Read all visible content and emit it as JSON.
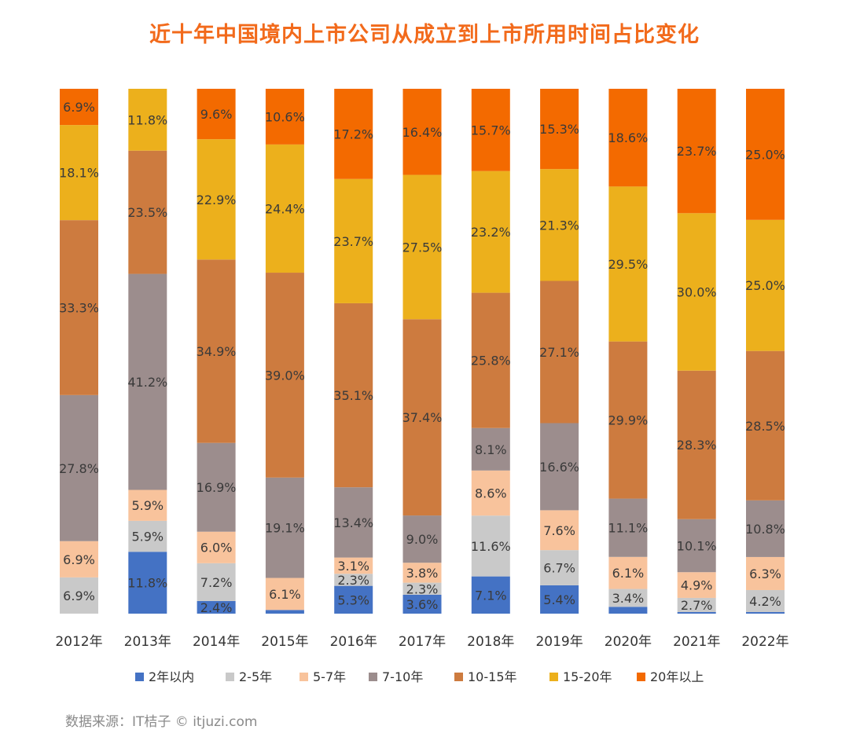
{
  "title": "近十年中国境内上市公司从成立到上市所用时间占比变化",
  "source": "数据来源：IT桔子 © itjuzi.com",
  "chart_data": {
    "type": "bar",
    "stacked": true,
    "normalized": true,
    "title": "近十年中国境内上市公司从成立到上市所用时间占比变化",
    "categories": [
      "2012年",
      "2013年",
      "2014年",
      "2015年",
      "2016年",
      "2017年",
      "2018年",
      "2019年",
      "2020年",
      "2021年",
      "2022年"
    ],
    "ylim": [
      0,
      100
    ],
    "grid": false,
    "legend_position": "bottom",
    "series": [
      {
        "name": "2年以内",
        "color": "#4472c4",
        "values": [
          0.0,
          11.8,
          2.4,
          0.7,
          5.3,
          3.6,
          7.1,
          5.4,
          1.3,
          0.3,
          0.3
        ],
        "labels": [
          "",
          "11.8%",
          "2.4%",
          "",
          "5.3%",
          "3.6%",
          "7.1%",
          "5.4%",
          "",
          "",
          ""
        ]
      },
      {
        "name": "2-5年",
        "color": "#c9c9c9",
        "values": [
          6.9,
          5.9,
          7.2,
          0.0,
          2.3,
          2.3,
          11.6,
          6.7,
          3.4,
          2.7,
          4.2
        ],
        "labels": [
          "6.9%",
          "5.9%",
          "7.2%",
          "",
          "2.3%",
          "2.3%",
          "11.6%",
          "6.7%",
          "3.4%",
          "2.7%",
          "4.2%"
        ]
      },
      {
        "name": "5-7年",
        "color": "#f8c39c",
        "values": [
          6.9,
          5.9,
          6.0,
          6.1,
          3.1,
          3.8,
          8.6,
          7.6,
          6.1,
          4.9,
          6.3
        ],
        "labels": [
          "6.9%",
          "5.9%",
          "6.0%",
          "6.1%",
          "3.1%",
          "3.8%",
          "8.6%",
          "7.6%",
          "6.1%",
          "4.9%",
          "6.3%"
        ]
      },
      {
        "name": "7-10年",
        "color": "#9c8d8d",
        "values": [
          27.8,
          41.2,
          16.9,
          19.1,
          13.4,
          9.0,
          8.1,
          16.6,
          11.1,
          10.1,
          10.8
        ],
        "labels": [
          "27.8%",
          "41.2%",
          "16.9%",
          "19.1%",
          "13.4%",
          "9.0%",
          "8.1%",
          "16.6%",
          "11.1%",
          "10.1%",
          "10.8%"
        ]
      },
      {
        "name": "10-15年",
        "color": "#cd7b3f",
        "values": [
          33.3,
          23.5,
          34.9,
          39.0,
          35.1,
          37.4,
          25.8,
          27.1,
          29.9,
          28.3,
          28.5
        ],
        "labels": [
          "33.3%",
          "23.5%",
          "34.9%",
          "39.0%",
          "35.1%",
          "37.4%",
          "25.8%",
          "27.1%",
          "29.9%",
          "28.3%",
          "28.5%"
        ]
      },
      {
        "name": "15-20年",
        "color": "#ecb01c",
        "values": [
          18.1,
          11.8,
          22.9,
          24.4,
          23.7,
          27.5,
          23.2,
          21.3,
          29.5,
          30.0,
          25.0
        ],
        "labels": [
          "18.1%",
          "11.8%",
          "22.9%",
          "24.4%",
          "23.7%",
          "27.5%",
          "23.2%",
          "21.3%",
          "29.5%",
          "30.0%",
          "25.0%"
        ]
      },
      {
        "name": "20年以上",
        "color": "#f36a00",
        "values": [
          6.9,
          0.0,
          9.6,
          10.6,
          17.2,
          16.4,
          15.7,
          15.3,
          18.6,
          23.7,
          25.0
        ],
        "labels": [
          "6.9%",
          "",
          "9.6%",
          "10.6%",
          "17.2%",
          "16.4%",
          "15.7%",
          "15.3%",
          "18.6%",
          "23.7%",
          "25.0%"
        ]
      }
    ]
  },
  "colors": {
    "title": "#f26a1b",
    "label_text": "#3a3a3a",
    "source_text": "#8a8a8a"
  }
}
